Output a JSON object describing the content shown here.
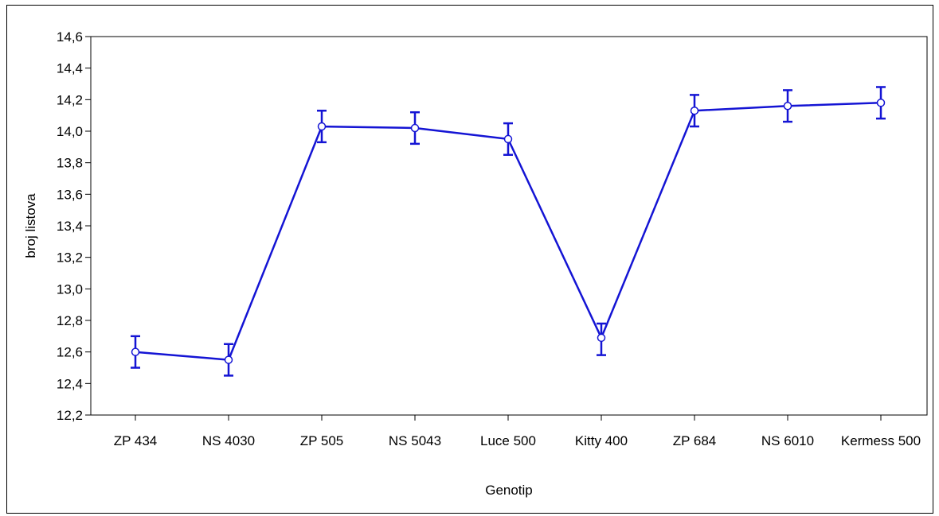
{
  "chart_data": {
    "type": "line",
    "title": "",
    "xlabel": "Genotip",
    "ylabel": "broj listova",
    "categories": [
      "ZP 434",
      "NS 4030",
      "ZP 505",
      "NS 5043",
      "Luce 500",
      "Kitty 400",
      "ZP 684",
      "NS 6010",
      "Kermess 500"
    ],
    "series": [
      {
        "name": "",
        "values": [
          12.6,
          12.55,
          14.03,
          14.02,
          13.95,
          12.69,
          14.13,
          14.16,
          14.18
        ],
        "err_low": [
          12.5,
          12.45,
          13.93,
          13.92,
          13.85,
          12.58,
          14.03,
          14.06,
          14.08
        ],
        "err_high": [
          12.7,
          12.65,
          14.13,
          14.12,
          14.05,
          12.78,
          14.23,
          14.26,
          14.28
        ],
        "color": "#1414d4"
      }
    ],
    "ylim": [
      12.2,
      14.6
    ],
    "yticks": [
      "12,2",
      "12,4",
      "12,6",
      "12,8",
      "13,0",
      "13,2",
      "13,4",
      "13,6",
      "13,8",
      "14,0",
      "14,2",
      "14,4",
      "14,6"
    ],
    "grid": false,
    "legend": "none"
  }
}
